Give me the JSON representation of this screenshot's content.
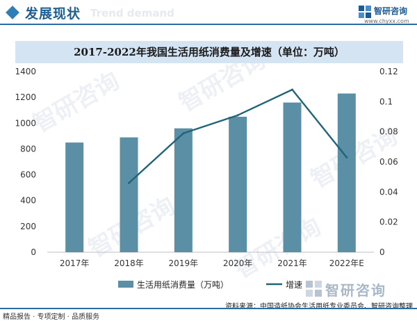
{
  "header": {
    "title": "发展现状",
    "watermark": "Trend demand"
  },
  "brand": {
    "name": "智研咨询",
    "url": "www.chyxx.com",
    "source_logo_name": "智研咨询",
    "watermark_text": "智研咨询"
  },
  "colors": {
    "bar": "#5b8fa6",
    "line": "#1f6477",
    "accent": "#2a6aa5"
  },
  "chart_data": {
    "type": "bar",
    "title": "2017-2022年我国生活用纸消费量及增速（单位：万吨）",
    "categories": [
      "2017年",
      "2018年",
      "2019年",
      "2020年",
      "2021年",
      "2022年E"
    ],
    "series": [
      {
        "name": "生活用纸消费量（万吨）",
        "type": "bar",
        "axis": "left",
        "values": [
          850,
          890,
          960,
          1050,
          1160,
          1230
        ]
      },
      {
        "name": "增速",
        "type": "line",
        "axis": "right",
        "values": [
          null,
          0.046,
          0.079,
          0.091,
          0.108,
          0.063
        ]
      }
    ],
    "y_left": {
      "ylim": [
        0,
        1400
      ],
      "ticks": [
        "0",
        "200",
        "400",
        "600",
        "800",
        "1000",
        "1200",
        "1400"
      ]
    },
    "y_right": {
      "ylim": [
        0,
        0.12
      ],
      "ticks": [
        "0",
        "0.02",
        "0.04",
        "0.06",
        "0.08",
        "0.1",
        "0.12"
      ]
    },
    "grid": false,
    "legend": "bottom"
  },
  "footer": {
    "left": "精品报告 · 专项定制 · 品质服务",
    "source": "资料来源：中国造纸协会生活用纸专业委员会、智研咨询整理"
  }
}
